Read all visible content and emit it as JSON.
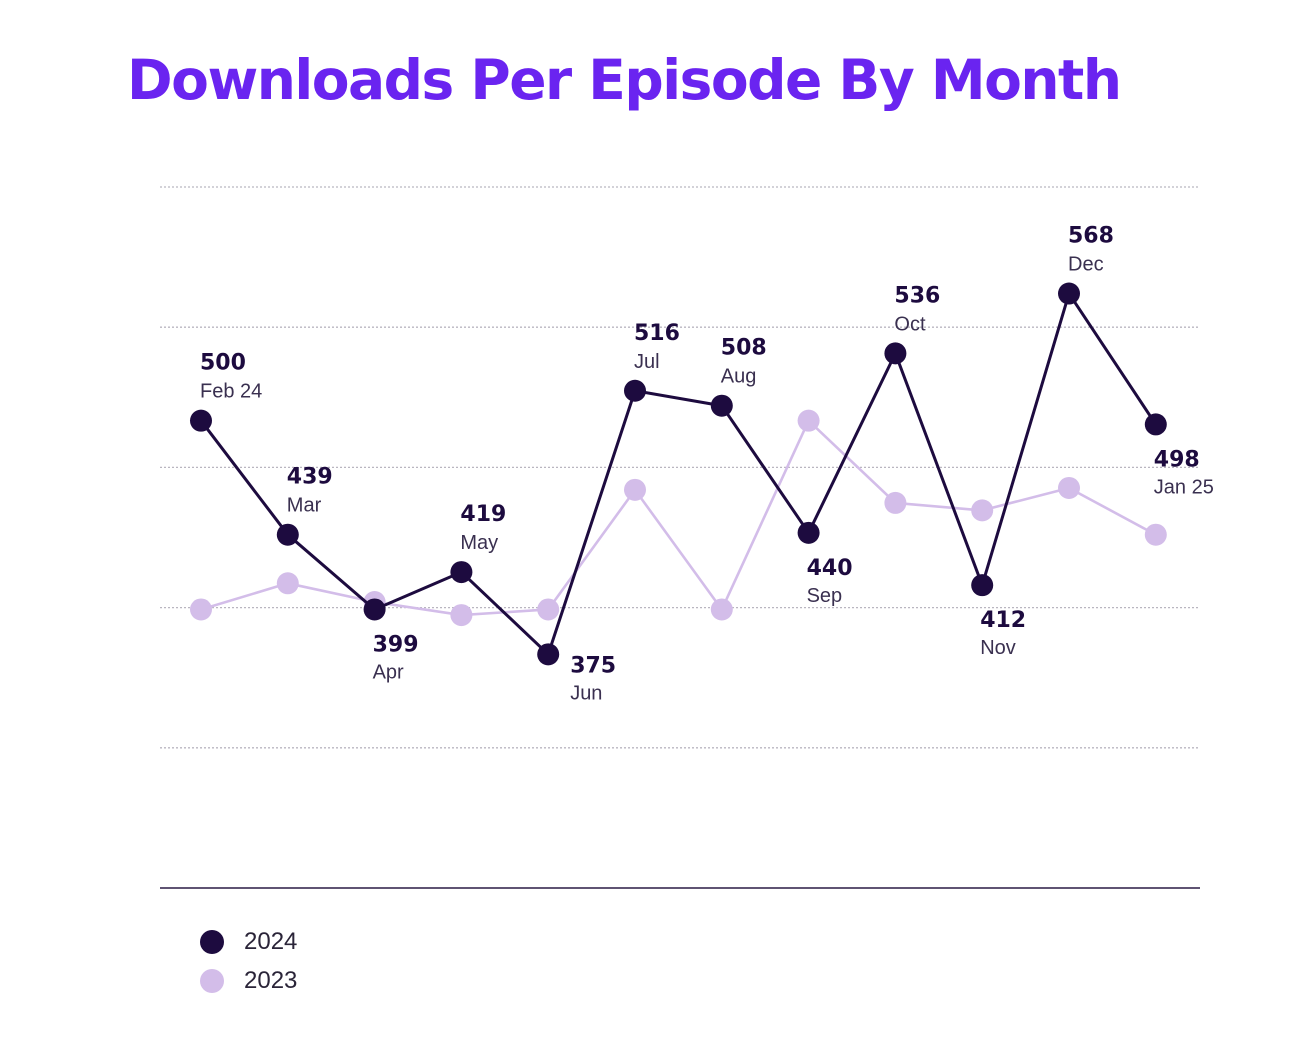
{
  "title": "Downloads Per Episode By Month",
  "colors": {
    "title": "#6a24f0",
    "series_2024": "#1d0b3f",
    "series_2023": "#d3bde9"
  },
  "chart_data": {
    "type": "line",
    "title": "Downloads Per Episode By Month",
    "xlabel": "",
    "ylabel": "",
    "categories": [
      "Feb 24",
      "Mar",
      "Apr",
      "May",
      "Jun",
      "Jul",
      "Aug",
      "Sep",
      "Oct",
      "Nov",
      "Dec",
      "Jan 25"
    ],
    "ylim": [
      250,
      625
    ],
    "grid": true,
    "legend": "bottom-left",
    "series": [
      {
        "name": "2024",
        "color": "#1d0b3f",
        "values": [
          500,
          439,
          399,
          419,
          375,
          516,
          508,
          440,
          536,
          412,
          568,
          498
        ],
        "label_positions": [
          "above",
          "above",
          "below",
          "above",
          "right",
          "above",
          "above",
          "below",
          "above",
          "below",
          "above",
          "below"
        ]
      },
      {
        "name": "2023",
        "color": "#d3bde9",
        "values": [
          399,
          413,
          403,
          396,
          399,
          463,
          399,
          500,
          456,
          452,
          464,
          439
        ]
      }
    ]
  },
  "legend": [
    {
      "label": "2024",
      "color": "#1d0b3f"
    },
    {
      "label": "2023",
      "color": "#d3bde9"
    }
  ]
}
